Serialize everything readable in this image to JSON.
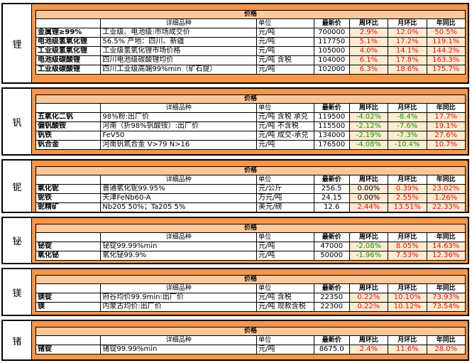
{
  "colors": {
    "frame": "#f79646",
    "header_fill": "#f9c89b",
    "change_fill": "#fdebd0",
    "up": "#ff0000",
    "down": "#00a000"
  },
  "headers": {
    "title": "价格",
    "name": "详细品种",
    "unit": "单位",
    "price": "最新价",
    "wow": "周环比",
    "mom": "月环比",
    "yoy": "年同比"
  },
  "blocks": [
    {
      "element": "锂",
      "rows": [
        {
          "product": "金属锂≥99%",
          "name": "工业级、电池级:市场成交价",
          "unit": "元/吨",
          "price": "700000",
          "wow": "2.9%",
          "mom": "12.0%",
          "yoy": "50.5%",
          "wow_dir": "up",
          "mom_dir": "up"
        },
        {
          "product": "电池级氢氧化锂",
          "name": "56.5% 产地：四川、新疆",
          "unit": "元/吨",
          "price": "117750",
          "wow": "5.1%",
          "mom": "17.2%",
          "yoy": "119.1%",
          "wow_dir": "up",
          "mom_dir": "up"
        },
        {
          "product": "工业级氢氧化锂",
          "name": "工业级氢氧化锂市场价格",
          "unit": "元/吨",
          "price": "105000",
          "wow": "4.0%",
          "mom": "14.1%",
          "yoy": "144.2%",
          "wow_dir": "up",
          "mom_dir": "up"
        },
        {
          "product": "电池级碳酸锂",
          "name": "四川电池级碳酸锂均价",
          "unit": "元/吨 含税",
          "price": "104000",
          "wow": "6.1%",
          "mom": "17.8%",
          "yoy": "163.3%",
          "wow_dir": "up",
          "mom_dir": "up"
        },
        {
          "product": "工业级碳酸锂",
          "name": "四川工业级高端99%min（矿石提）",
          "unit": "元/吨",
          "price": "102000",
          "wow": "6.3%",
          "mom": "18.6%",
          "yoy": "175.7%",
          "wow_dir": "up",
          "mom_dir": "up"
        }
      ]
    },
    {
      "element": "钒",
      "rows": [
        {
          "product": "五氧化二钒",
          "name": "98%粉:出厂价",
          "unit": "元/吨 含税 承兑",
          "price": "119500",
          "wow": "-4.02%",
          "mom": "-8.4%",
          "yoy": "17.7%",
          "wow_dir": "down",
          "mom_dir": "down"
        },
        {
          "product": "偏钒酸铵",
          "name": "河南（折98%钒酸铵）:出厂价",
          "unit": "元/吨 不含税",
          "price": "115500",
          "wow": "-2.12%",
          "mom": "-7.6%",
          "yoy": "19.1%",
          "wow_dir": "down",
          "mom_dir": "down"
        },
        {
          "product": "钒铁",
          "name": "FeV50",
          "unit": "元/吨 成交-承兑",
          "price": "134000",
          "wow": "-2.19%",
          "mom": "-7.3%",
          "yoy": "27.6%",
          "wow_dir": "down",
          "mom_dir": "down"
        },
        {
          "product": "钒合金",
          "name": "河南钒氮合金 V>79 N>16",
          "unit": "元/吨",
          "price": "176500",
          "wow": "-4.08%",
          "mom": "-10.4%",
          "yoy": "10.7%",
          "wow_dir": "down",
          "mom_dir": "down"
        }
      ]
    },
    {
      "element": "铌",
      "rows": [
        {
          "product": "氧化铌",
          "name": "普通氧化铌99.95%",
          "unit": "元/公斤",
          "price": "256.5",
          "wow": "0.00%",
          "mom": "0.39%",
          "yoy": "23.02%",
          "wow_dir": "flat",
          "mom_dir": "up"
        },
        {
          "product": "铌铁",
          "name": "天津FeNb60-A",
          "unit": "万元/吨",
          "price": "24.15",
          "wow": "0.00%",
          "mom": "2.55%",
          "yoy": "1.26%",
          "wow_dir": "flat",
          "mom_dir": "up"
        },
        {
          "product": "铌精矿",
          "name": "Nb205 50%；Ta205 5%",
          "unit": "美元/磅",
          "price": "12.6",
          "wow": "2.44%",
          "mom": "13.51%",
          "yoy": "22.33%",
          "wow_dir": "up",
          "mom_dir": "up"
        }
      ]
    },
    {
      "element": "铋",
      "rows": [
        {
          "product": "铋锭",
          "name": "铋锭99.99%min",
          "unit": "元/吨",
          "price": "47000",
          "wow": "-2.08%",
          "mom": "8.05%",
          "yoy": "14.63%",
          "wow_dir": "down",
          "mom_dir": "up"
        },
        {
          "product": "氧化铋",
          "name": "氧化铋99.9%",
          "unit": "元/吨",
          "price": "50000",
          "wow": "-1.96%",
          "mom": "7.53%",
          "yoy": "12.36%",
          "wow_dir": "down",
          "mom_dir": "up"
        }
      ]
    },
    {
      "element": "镁",
      "rows": [
        {
          "product": "镁锭",
          "name": "府谷均价99.9min:出厂价",
          "unit": "元/吨 含税",
          "price": "22350",
          "wow": "0.22%",
          "mom": "10.10%",
          "yoy": "73.93%",
          "wow_dir": "up",
          "mom_dir": "up"
        },
        {
          "product": "镁",
          "name": "内蒙古均价:出厂价",
          "unit": "元/吨 现款含税",
          "price": "22300",
          "wow": "0.22%",
          "mom": "10.12%",
          "yoy": "73.54%",
          "wow_dir": "up",
          "mom_dir": "up"
        }
      ]
    },
    {
      "element": "锗",
      "rows": [
        {
          "product": "锗锭",
          "name": "锗锭99.99%min",
          "unit": "元/吨",
          "price": "8675.0",
          "wow": "2.4%",
          "mom": "11.6%",
          "yoy": "28.0%",
          "wow_dir": "up",
          "mom_dir": "up"
        }
      ]
    }
  ]
}
